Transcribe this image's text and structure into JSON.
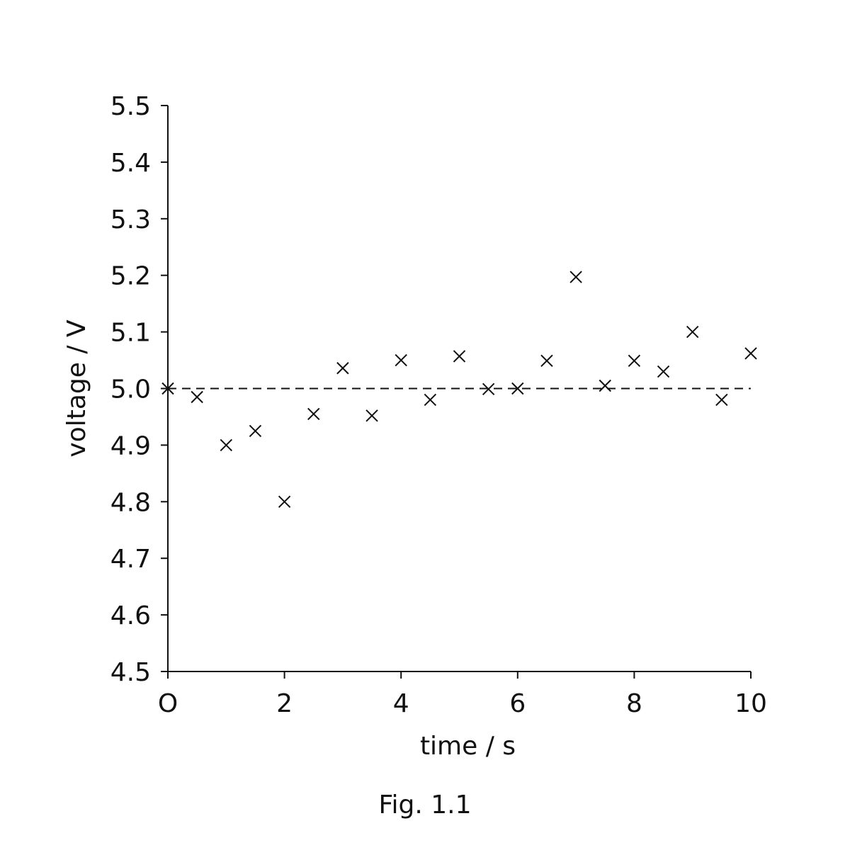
{
  "chart_data": {
    "type": "scatter",
    "marker": "cross",
    "x": [
      0,
      0.5,
      1,
      1.5,
      2,
      2.5,
      3,
      3.5,
      4,
      4.5,
      5,
      5.5,
      6,
      6.5,
      7,
      7.5,
      8,
      8.5,
      9,
      9.5,
      10
    ],
    "y": [
      5.0,
      4.985,
      4.9,
      4.925,
      4.8,
      4.955,
      5.036,
      4.952,
      5.05,
      4.98,
      5.057,
      4.999,
      5.0,
      5.049,
      5.197,
      5.005,
      5.049,
      5.03,
      5.1,
      4.98,
      5.062
    ],
    "xlabel": "time / s",
    "ylabel": "voltage / V",
    "xlim": [
      0,
      10
    ],
    "ylim": [
      4.5,
      5.5
    ],
    "xticks": [
      0,
      2,
      4,
      6,
      8,
      10
    ],
    "xtick_labels": [
      "O",
      "2",
      "4",
      "6",
      "8",
      "10"
    ],
    "yticks": [
      4.5,
      4.6,
      4.7,
      4.8,
      4.9,
      5.0,
      5.1,
      5.2,
      5.3,
      5.4,
      5.5
    ],
    "ytick_labels": [
      "4.5",
      "4.6",
      "4.7",
      "4.8",
      "4.9",
      "5.0",
      "5.1",
      "5.2",
      "5.3",
      "5.4",
      "5.5"
    ],
    "reference_line": {
      "y": 5.0,
      "style": "dashed"
    },
    "grid": false,
    "caption": "Fig. 1.1"
  }
}
